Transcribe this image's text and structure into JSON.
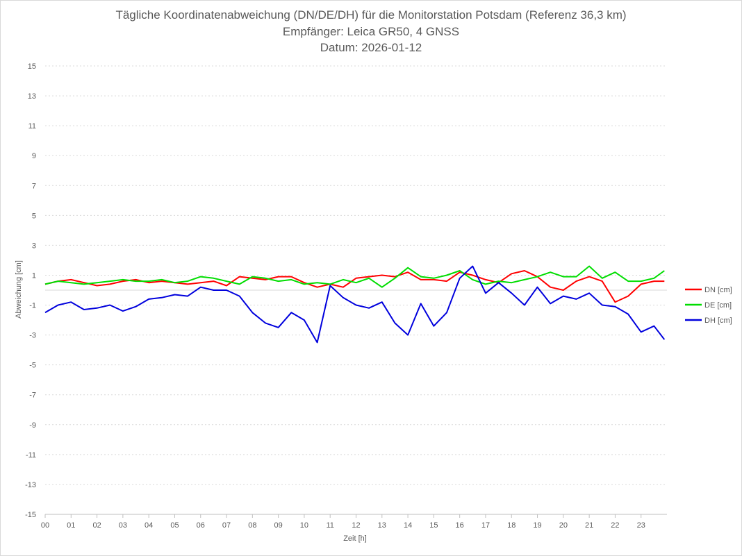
{
  "chart_data": {
    "type": "line",
    "title": "Tägliche Koordinatenabweichung (DN/DE/DH) für die Monitorstation Potsdam (Referenz 36,3 km)",
    "subtitle": "Empfänger: Leica GR50, 4 GNSS",
    "date_label": "Datum: 2026-01-12",
    "xlabel": "Zeit [h]",
    "ylabel": "Abweichung [cm]",
    "ylim": [
      -15,
      15
    ],
    "xlim": [
      0,
      24
    ],
    "y_ticks": [
      -15,
      -13,
      -11,
      -9,
      -7,
      -5,
      -3,
      -1,
      1,
      3,
      5,
      7,
      9,
      11,
      13,
      15
    ],
    "x_tick_labels": [
      "00",
      "01",
      "02",
      "03",
      "04",
      "05",
      "06",
      "07",
      "08",
      "09",
      "10",
      "11",
      "12",
      "13",
      "14",
      "15",
      "16",
      "17",
      "18",
      "19",
      "20",
      "21",
      "22",
      "23"
    ],
    "grid": true,
    "legend_position": "right",
    "x": [
      0,
      0.5,
      1,
      1.5,
      2,
      2.5,
      3,
      3.5,
      4,
      4.5,
      5,
      5.5,
      6,
      6.5,
      7,
      7.5,
      8,
      8.5,
      9,
      9.5,
      10,
      10.5,
      11,
      11.5,
      12,
      12.5,
      13,
      13.5,
      14,
      14.5,
      15,
      15.5,
      16,
      16.5,
      17,
      17.5,
      18,
      18.5,
      19,
      19.5,
      20,
      20.5,
      21,
      21.5,
      22,
      22.5,
      23,
      23.5,
      23.9
    ],
    "series": [
      {
        "name": "DN [cm]",
        "color": "#ff0000",
        "values": [
          0.4,
          0.6,
          0.7,
          0.5,
          0.3,
          0.4,
          0.6,
          0.7,
          0.5,
          0.6,
          0.5,
          0.4,
          0.5,
          0.6,
          0.3,
          0.9,
          0.8,
          0.7,
          0.9,
          0.9,
          0.5,
          0.2,
          0.4,
          0.2,
          0.8,
          0.9,
          1.0,
          0.9,
          1.2,
          0.7,
          0.7,
          0.6,
          1.2,
          1.0,
          0.7,
          0.5,
          1.1,
          1.3,
          0.9,
          0.2,
          0.0,
          0.6,
          0.9,
          0.6,
          -0.8,
          -0.4,
          0.4,
          0.6,
          0.6
        ]
      },
      {
        "name": "DE [cm]",
        "color": "#00dd00",
        "values": [
          0.4,
          0.6,
          0.5,
          0.4,
          0.5,
          0.6,
          0.7,
          0.6,
          0.6,
          0.7,
          0.5,
          0.6,
          0.9,
          0.8,
          0.6,
          0.4,
          0.9,
          0.8,
          0.6,
          0.7,
          0.4,
          0.5,
          0.4,
          0.7,
          0.5,
          0.8,
          0.2,
          0.8,
          1.5,
          0.9,
          0.8,
          1.0,
          1.3,
          0.7,
          0.4,
          0.6,
          0.5,
          0.7,
          0.9,
          1.2,
          0.9,
          0.9,
          1.6,
          0.8,
          1.2,
          0.6,
          0.6,
          0.8,
          1.3
        ]
      },
      {
        "name": "DH [cm]",
        "color": "#0000dd",
        "values": [
          -1.5,
          -1.0,
          -0.8,
          -1.3,
          -1.2,
          -1.0,
          -1.4,
          -1.1,
          -0.6,
          -0.5,
          -0.3,
          -0.4,
          0.2,
          0.0,
          0.0,
          -0.4,
          -1.5,
          -2.2,
          -2.5,
          -1.5,
          -2.0,
          -3.5,
          0.3,
          -0.5,
          -1.0,
          -1.2,
          -0.8,
          -2.2,
          -3.0,
          -0.9,
          -2.4,
          -1.5,
          0.8,
          1.6,
          -0.2,
          0.5,
          -0.2,
          -1.0,
          0.2,
          -0.9,
          -0.4,
          -0.6,
          -0.2,
          -1.0,
          -1.1,
          -1.6,
          -2.8,
          -2.4,
          -3.3
        ]
      }
    ]
  }
}
